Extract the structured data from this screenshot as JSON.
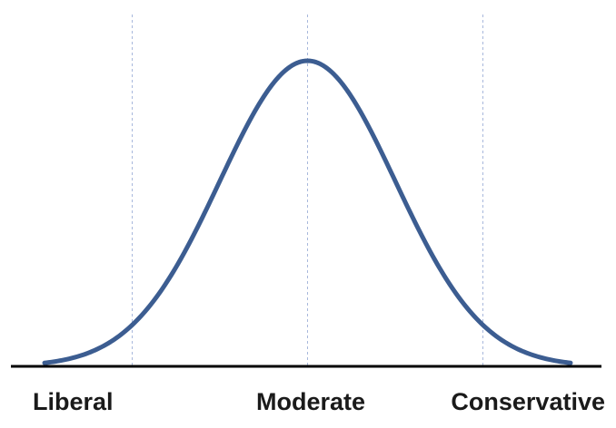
{
  "chart_data": {
    "type": "line",
    "title": "",
    "xlabel": "",
    "ylabel": "",
    "categories": [
      "Liberal",
      "Moderate",
      "Conservative"
    ],
    "x_tick_labels": [
      "Liberal",
      "Moderate",
      "Conservative"
    ],
    "series": [
      {
        "name": "",
        "distribution": "normal",
        "mean": 0,
        "std": 1,
        "x_range": [
          -3,
          3
        ]
      }
    ],
    "grid": {
      "vertical_dashed_lines_at": [
        -2,
        0,
        2
      ]
    },
    "xlim": [
      -3,
      3
    ],
    "legend": "none",
    "colors": {
      "curve": "#3c5d91",
      "axis": "#000000",
      "gridline": "#a8b8dc",
      "text": "#1a1a1a"
    }
  }
}
